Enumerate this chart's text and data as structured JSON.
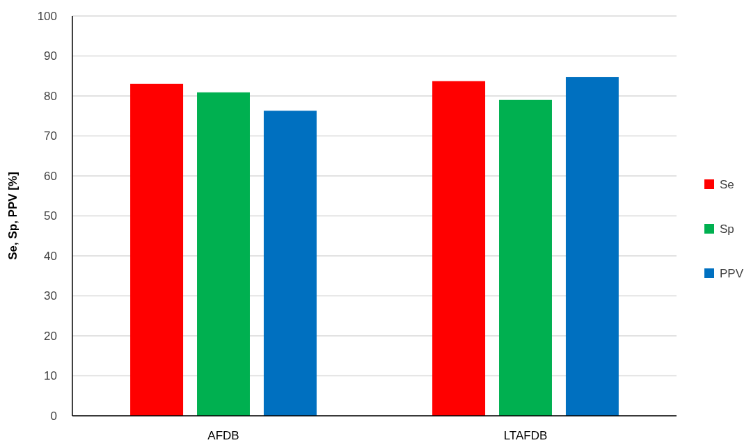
{
  "chart_data": {
    "type": "bar",
    "ylabel": "Se, Sp, PPV [%]",
    "categories": [
      "AFDB",
      "LTAFDB"
    ],
    "series": [
      {
        "name": "Se",
        "color": "#ff0000",
        "values": [
          83.0,
          83.7
        ]
      },
      {
        "name": "Sp",
        "color": "#00b050",
        "values": [
          80.9,
          79.0
        ]
      },
      {
        "name": "PPV",
        "color": "#0070c0",
        "values": [
          76.3,
          84.7
        ]
      }
    ],
    "ylim": [
      0,
      100
    ],
    "yticks": [
      0,
      10,
      20,
      30,
      40,
      50,
      60,
      70,
      80,
      90,
      100
    ],
    "grid": "y",
    "legend": "right"
  }
}
